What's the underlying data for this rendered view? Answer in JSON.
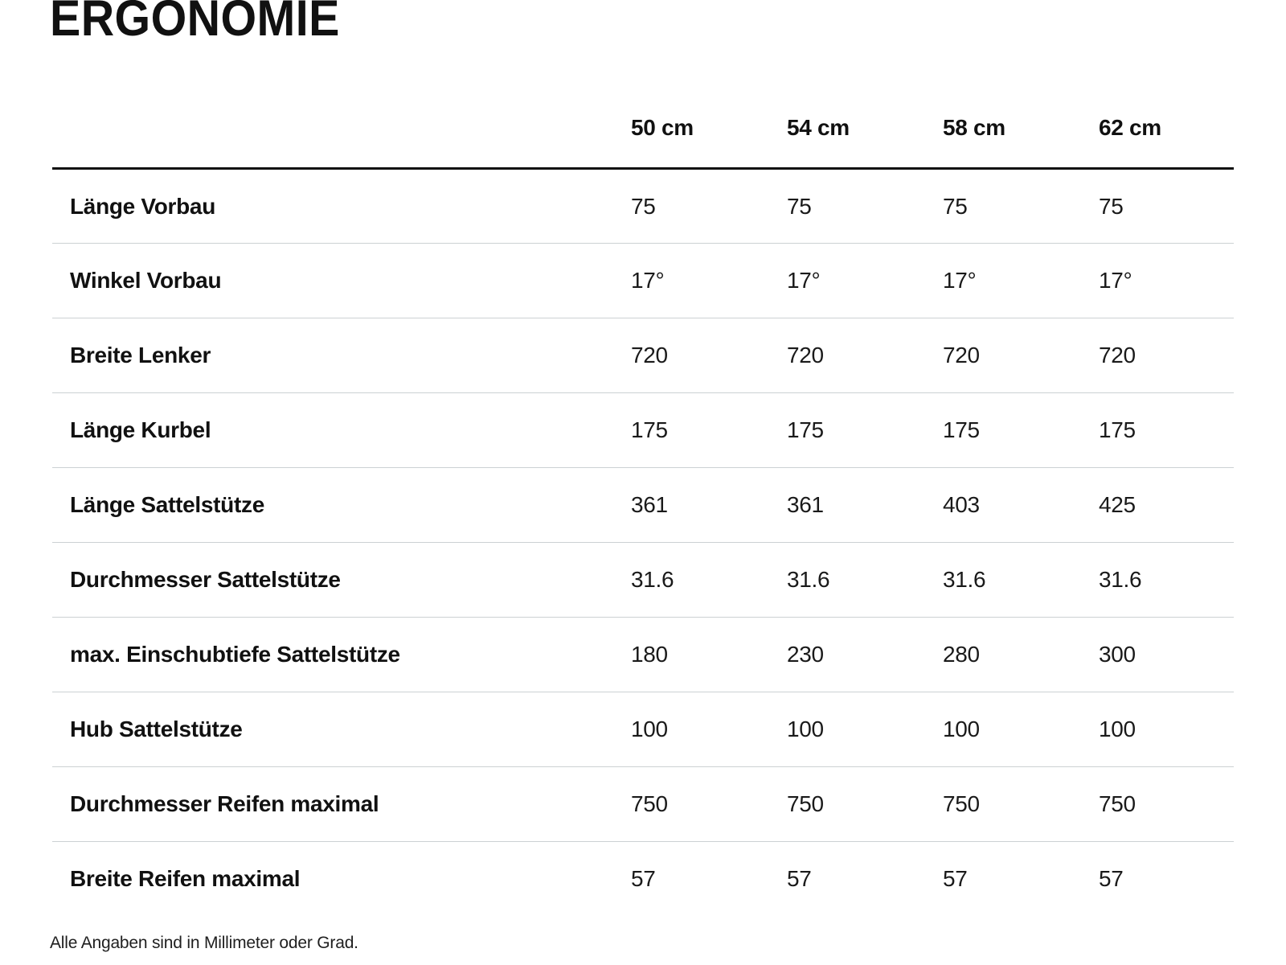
{
  "page": {
    "title": "ERGONOMIE",
    "footnote": "Alle Angaben sind in Millimeter oder Grad."
  },
  "table": {
    "column_headers": [
      "50 cm",
      "54 cm",
      "58 cm",
      "62 cm"
    ],
    "rows": [
      {
        "label": "Länge Vorbau",
        "values": [
          "75",
          "75",
          "75",
          "75"
        ]
      },
      {
        "label": "Winkel Vorbau",
        "values": [
          "17°",
          "17°",
          "17°",
          "17°"
        ]
      },
      {
        "label": "Breite Lenker",
        "values": [
          "720",
          "720",
          "720",
          "720"
        ]
      },
      {
        "label": "Länge Kurbel",
        "values": [
          "175",
          "175",
          "175",
          "175"
        ]
      },
      {
        "label": "Länge Sattelstütze",
        "values": [
          "361",
          "361",
          "403",
          "425"
        ]
      },
      {
        "label": "Durchmesser Sattelstütze",
        "values": [
          "31.6",
          "31.6",
          "31.6",
          "31.6"
        ]
      },
      {
        "label": "max. Einschubtiefe Sattelstütze",
        "values": [
          "180",
          "230",
          "280",
          "300"
        ]
      },
      {
        "label": "Hub Sattelstütze",
        "values": [
          "100",
          "100",
          "100",
          "100"
        ]
      },
      {
        "label": "Durchmesser Reifen maximal",
        "values": [
          "750",
          "750",
          "750",
          "750"
        ]
      },
      {
        "label": "Breite Reifen maximal",
        "values": [
          "57",
          "57",
          "57",
          "57"
        ]
      }
    ]
  },
  "colors": {
    "text": "#111111",
    "row_separator": "#ccd1d3",
    "header_rule": "#111111",
    "background": "#ffffff"
  }
}
